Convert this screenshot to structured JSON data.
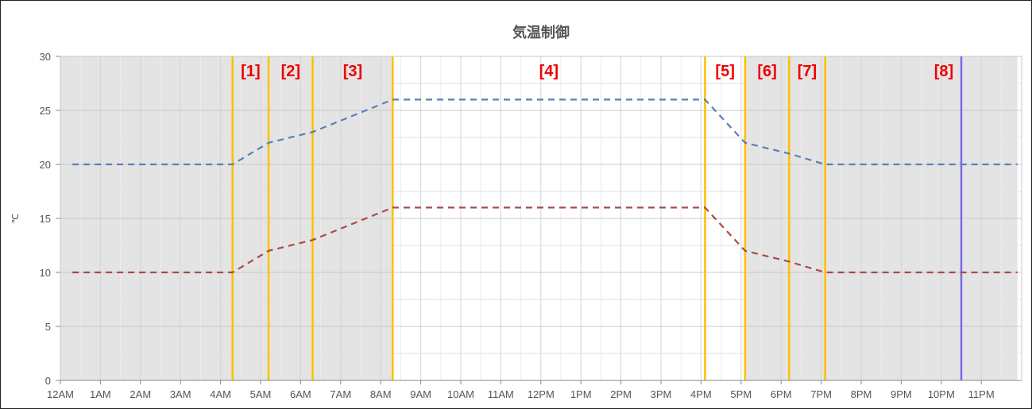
{
  "chart_data": {
    "type": "line",
    "title": "気温制御",
    "ylabel": "℃",
    "xlabel": "",
    "ylim": [
      0,
      30
    ],
    "yticks": [
      0,
      5,
      10,
      15,
      20,
      25,
      30
    ],
    "xlim": [
      0,
      23.9
    ],
    "xticks": [
      {
        "h": 0,
        "label": "12AM"
      },
      {
        "h": 1,
        "label": "1AM"
      },
      {
        "h": 2,
        "label": "2AM"
      },
      {
        "h": 3,
        "label": "3AM"
      },
      {
        "h": 4,
        "label": "4AM"
      },
      {
        "h": 5,
        "label": "5AM"
      },
      {
        "h": 6,
        "label": "6AM"
      },
      {
        "h": 7,
        "label": "7AM"
      },
      {
        "h": 8,
        "label": "8AM"
      },
      {
        "h": 9,
        "label": "9AM"
      },
      {
        "h": 10,
        "label": "10AM"
      },
      {
        "h": 11,
        "label": "11AM"
      },
      {
        "h": 12,
        "label": "12PM"
      },
      {
        "h": 13,
        "label": "1PM"
      },
      {
        "h": 14,
        "label": "2PM"
      },
      {
        "h": 15,
        "label": "3PM"
      },
      {
        "h": 16,
        "label": "4PM"
      },
      {
        "h": 17,
        "label": "5PM"
      },
      {
        "h": 18,
        "label": "6PM"
      },
      {
        "h": 19,
        "label": "7PM"
      },
      {
        "h": 20,
        "label": "8PM"
      },
      {
        "h": 21,
        "label": "9PM"
      },
      {
        "h": 22,
        "label": "10PM"
      },
      {
        "h": 23,
        "label": "11PM"
      }
    ],
    "grid": true,
    "series": [
      {
        "color": "#5b7fb5",
        "style": "dashed",
        "x": [
          0.3,
          4.3,
          5.2,
          6.3,
          8.3,
          16.1,
          17.1,
          18.2,
          19.1,
          23.9
        ],
        "y": [
          20,
          20,
          22,
          23,
          26,
          26,
          22,
          21,
          20,
          20
        ]
      },
      {
        "color": "#a94a4a",
        "style": "dashed",
        "x": [
          0.3,
          4.3,
          5.2,
          6.3,
          8.3,
          16.1,
          17.1,
          18.2,
          19.1,
          23.9
        ],
        "y": [
          10,
          10,
          12,
          13,
          16,
          16,
          12,
          11,
          10,
          10
        ]
      }
    ],
    "shaded_ranges": [
      {
        "from": 0,
        "to": 8.3,
        "color": "#e4e4e4"
      },
      {
        "from": 17.1,
        "to": 23.9,
        "color": "#e4e4e4"
      }
    ],
    "vertical_markers": [
      {
        "h": 4.3,
        "color": "#ffc000",
        "label": "[1]"
      },
      {
        "h": 5.2,
        "color": "#ffc000",
        "label": "[2]"
      },
      {
        "h": 6.3,
        "color": "#ffc000",
        "label": "[3]"
      },
      {
        "h": 8.3,
        "color": "#ffc000",
        "label": "[4]"
      },
      {
        "h": 16.1,
        "color": "#ffc000",
        "label": "[5]"
      },
      {
        "h": 17.1,
        "color": "#ffc000",
        "label": "[6]"
      },
      {
        "h": 18.2,
        "color": "#ffc000",
        "label": "[7]"
      },
      {
        "h": 19.1,
        "color": "#ffc000",
        "label": ""
      },
      {
        "h": 22.5,
        "color": "#7b68ee",
        "label": "[8]"
      }
    ]
  }
}
